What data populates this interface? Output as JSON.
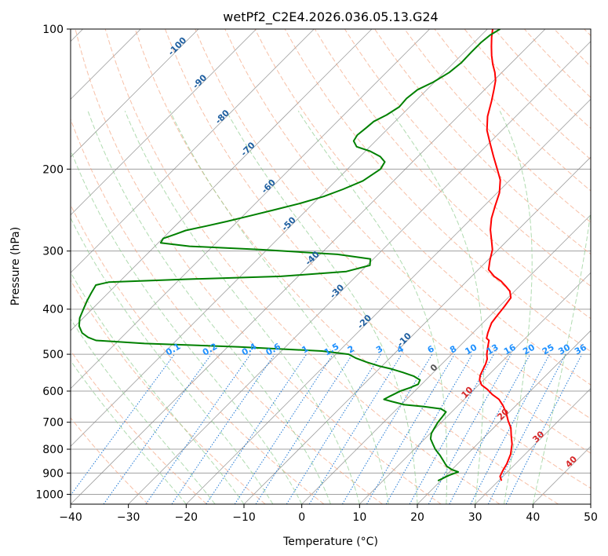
{
  "chart_data": {
    "type": "line",
    "subtype": "skew-t log-p diagram",
    "title": "wetPf2_C2E4.2026.036.05.13.G24",
    "xlabel": "Temperature (°C)",
    "ylabel": "Pressure (hPa)",
    "xlim": [
      -40,
      50
    ],
    "ylim": [
      1050,
      100
    ],
    "y_scale": "log",
    "x_ticks": [
      "−40",
      "−30",
      "−20",
      "−10",
      "0",
      "10",
      "20",
      "30",
      "40",
      "50"
    ],
    "x_tick_values": [
      -40,
      -30,
      -20,
      -10,
      0,
      10,
      20,
      30,
      40,
      50
    ],
    "y_ticks": [
      "100",
      "200",
      "300",
      "400",
      "500",
      "600",
      "700",
      "800",
      "900",
      "1000"
    ],
    "y_tick_values": [
      100,
      200,
      300,
      400,
      500,
      600,
      700,
      800,
      900,
      1000
    ],
    "grid": true,
    "colors": {
      "temperature": "#ff0000",
      "dewpoint": "#008000",
      "isotherm": "#7f7f7f",
      "isobar": "#a0a0a0",
      "dry_adiabat": "#f4a582",
      "moist_adiabat": "#8fcc8f",
      "mixing_ratio": "#1f78d4",
      "isotherm_label_cold": "#1f5fa0",
      "isotherm_label_warm": "#d62728",
      "mixing_ratio_label": "#1e90ff"
    },
    "isotherm_labels_cold": [
      "-100",
      "-90",
      "-80",
      "-70",
      "-60",
      "-50",
      "-40",
      "-30",
      "-20",
      "-10"
    ],
    "isotherm_labels_warm": [
      "0",
      "10",
      "20",
      "30",
      "40"
    ],
    "mixing_ratio_labels": [
      "0.1",
      "0.2",
      "0.4",
      "0.6",
      "1",
      "1.5",
      "2",
      "3",
      "4",
      "6",
      "8",
      "10",
      "13",
      "16",
      "20",
      "25",
      "30",
      "36"
    ],
    "series": [
      {
        "key": "temperature",
        "points": [
          [
            30.5,
            935
          ],
          [
            29.5,
            915
          ],
          [
            29,
            890
          ],
          [
            28.5,
            860
          ],
          [
            27.5,
            820
          ],
          [
            26,
            780
          ],
          [
            24.5,
            750
          ],
          [
            23,
            720
          ],
          [
            21.3,
            695
          ],
          [
            19.5,
            667
          ],
          [
            17.8,
            645
          ],
          [
            16,
            625
          ],
          [
            14,
            610
          ],
          [
            12.3,
            595
          ],
          [
            10.5,
            582
          ],
          [
            9.3,
            568
          ],
          [
            8.6,
            555
          ],
          [
            8.1,
            540
          ],
          [
            7.6,
            525
          ],
          [
            7.0,
            512
          ],
          [
            6.1,
            500
          ],
          [
            5.3,
            487
          ],
          [
            4.7,
            477
          ],
          [
            4.1,
            467
          ],
          [
            3.3,
            462
          ],
          [
            2.6,
            450
          ],
          [
            2.1,
            440
          ],
          [
            1.5,
            428
          ],
          [
            1.2,
            412
          ],
          [
            0.9,
            395
          ],
          [
            0.5,
            378
          ],
          [
            -0.8,
            366
          ],
          [
            -2.4,
            357
          ],
          [
            -4.1,
            348
          ],
          [
            -6.1,
            340
          ],
          [
            -8.2,
            329
          ],
          [
            -9.6,
            314
          ],
          [
            -11.0,
            298
          ],
          [
            -12.7,
            285
          ],
          [
            -14.8,
            270
          ],
          [
            -16.6,
            255
          ],
          [
            -18.1,
            240
          ],
          [
            -19.6,
            225
          ],
          [
            -21.7,
            211
          ],
          [
            -24.1,
            200
          ],
          [
            -26.9,
            188
          ],
          [
            -29.8,
            176
          ],
          [
            -32.6,
            165
          ],
          [
            -34.9,
            154
          ],
          [
            -36.8,
            143
          ],
          [
            -38.4,
            135
          ],
          [
            -39.7,
            129
          ],
          [
            -41.2,
            124
          ],
          [
            -43.0,
            119
          ],
          [
            -44.7,
            114
          ],
          [
            -46.3,
            109
          ],
          [
            -47.9,
            104
          ],
          [
            -49.1,
            100
          ]
        ]
      },
      {
        "key": "dewpoint",
        "points": [
          [
            19.5,
            935
          ],
          [
            20.5,
            910
          ],
          [
            21.5,
            895
          ],
          [
            20.0,
            885
          ],
          [
            18.5,
            870
          ],
          [
            17.2,
            850
          ],
          [
            15.5,
            825
          ],
          [
            13.6,
            800
          ],
          [
            12.3,
            780
          ],
          [
            11.0,
            760
          ],
          [
            10.2,
            740
          ],
          [
            9.8,
            720
          ],
          [
            9.4,
            700
          ],
          [
            9.2,
            680
          ],
          [
            9.0,
            665
          ],
          [
            7.6,
            655
          ],
          [
            4.3,
            648
          ],
          [
            0.6,
            642
          ],
          [
            -2.1,
            632
          ],
          [
            -3.9,
            625
          ],
          [
            -3.5,
            617
          ],
          [
            -3.1,
            610
          ],
          [
            -2.5,
            600
          ],
          [
            -1.4,
            590
          ],
          [
            -0.6,
            580
          ],
          [
            -1.0,
            568
          ],
          [
            -2.8,
            557
          ],
          [
            -5.3,
            547
          ],
          [
            -7.8,
            538
          ],
          [
            -10.5,
            530
          ],
          [
            -13.3,
            520
          ],
          [
            -15.8,
            510
          ],
          [
            -17.8,
            500
          ],
          [
            -23.0,
            492
          ],
          [
            -38.0,
            482
          ],
          [
            -55.0,
            474
          ],
          [
            -63.9,
            467
          ],
          [
            -65.8,
            460
          ],
          [
            -67.6,
            450
          ],
          [
            -69.3,
            435
          ],
          [
            -70.6,
            418
          ],
          [
            -71.5,
            400
          ],
          [
            -72.3,
            384
          ],
          [
            -72.9,
            370
          ],
          [
            -73.5,
            355
          ],
          [
            -71.8,
            350
          ],
          [
            -59.0,
            345
          ],
          [
            -43.0,
            340
          ],
          [
            -32.5,
            332
          ],
          [
            -29.5,
            322
          ],
          [
            -30.5,
            312
          ],
          [
            -37.0,
            305
          ],
          [
            -51.0,
            298
          ],
          [
            -64.0,
            293
          ],
          [
            -69.6,
            288
          ],
          [
            -69.9,
            282
          ],
          [
            -68.5,
            276
          ],
          [
            -67.4,
            271
          ],
          [
            -64.6,
            265
          ],
          [
            -61.8,
            259
          ],
          [
            -58.8,
            252
          ],
          [
            -55.8,
            245
          ],
          [
            -52.3,
            237
          ],
          [
            -49.4,
            229
          ],
          [
            -47.3,
            221
          ],
          [
            -45.3,
            212
          ],
          [
            -44.3,
            200
          ],
          [
            -44.8,
            193
          ],
          [
            -46.5,
            188
          ],
          [
            -49.2,
            183
          ],
          [
            -52.3,
            179
          ],
          [
            -53.8,
            174
          ],
          [
            -54.2,
            169
          ],
          [
            -53.9,
            163
          ],
          [
            -53.7,
            158
          ],
          [
            -52.6,
            153
          ],
          [
            -51.8,
            147
          ],
          [
            -52.0,
            141
          ],
          [
            -51.6,
            135
          ],
          [
            -50.2,
            130
          ],
          [
            -49.1,
            124
          ],
          [
            -48.7,
            118
          ],
          [
            -48.8,
            112
          ],
          [
            -48.8,
            107
          ],
          [
            -48.5,
            103
          ],
          [
            -47.8,
            100
          ]
        ]
      }
    ]
  }
}
